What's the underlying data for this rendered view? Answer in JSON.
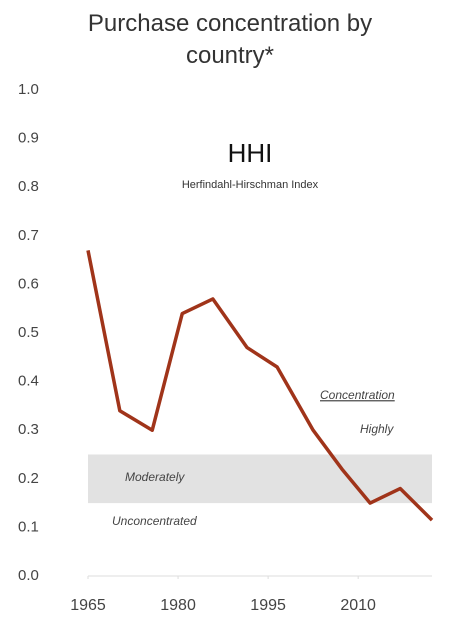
{
  "chart_data": {
    "type": "line",
    "title": "Purchase concentration by country*",
    "subtitle": "HHI",
    "subtitle_note": "Herfindahl-Hirschman Index",
    "x": [
      1965,
      1970.3,
      1975.7,
      1980.7,
      1985.8,
      1991.5,
      1996.5,
      2002.5,
      2007.3,
      2012,
      2017,
      2022.3
    ],
    "series": [
      {
        "name": "HHI",
        "color": "#a0341a",
        "values": [
          0.67,
          0.34,
          0.3,
          0.54,
          0.57,
          0.47,
          0.43,
          0.3,
          0.22,
          0.15,
          0.18,
          0.115
        ]
      }
    ],
    "band": [
      0.15,
      0.25
    ],
    "band_color": "#e2e2e2",
    "annotations": [
      "Moderately",
      "Unconcentrated",
      "Concentration",
      "Highly"
    ],
    "xlim": [
      1965,
      2022.3
    ],
    "xticks": [
      1965,
      1980,
      1995,
      2010
    ],
    "ylim": [
      0,
      1
    ],
    "yticks": [
      {
        "value": 0,
        "label": "0.0"
      },
      0.1,
      0.2,
      0.3,
      0.4,
      0.5,
      0.6,
      0.7,
      0.8,
      0.9,
      {
        "value": 1,
        "label": "1.0"
      }
    ],
    "grid": false
  }
}
